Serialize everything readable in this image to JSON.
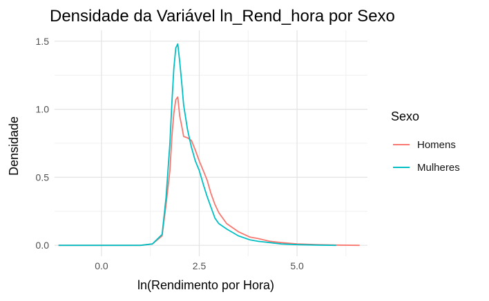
{
  "chart_data": {
    "type": "line",
    "title": "Densidade da Variável ln_Rend_hora por Sexo",
    "xlabel": "ln(Rendimento por Hora)",
    "ylabel": "Densidade",
    "xlim": [
      -1.2,
      6.8
    ],
    "ylim": [
      -0.08,
      1.58
    ],
    "x_ticks": [
      0,
      2.5,
      5
    ],
    "x_tick_labels": [
      "0.0",
      "2.5",
      "5.0"
    ],
    "y_ticks": [
      0,
      0.5,
      1,
      1.5
    ],
    "y_tick_labels": [
      "0.0",
      "0.5",
      "1.0",
      "1.5"
    ],
    "grid": true,
    "legend": {
      "title": "Sexo",
      "position": "right"
    },
    "series": [
      {
        "name": "Homens",
        "color": "#F8766D",
        "x": [
          -1.1,
          0,
          1.0,
          1.3,
          1.55,
          1.65,
          1.75,
          1.8,
          1.85,
          1.9,
          1.95,
          2.0,
          2.05,
          2.1,
          2.2,
          2.3,
          2.4,
          2.5,
          2.6,
          2.7,
          2.8,
          2.9,
          3.0,
          3.2,
          3.5,
          3.8,
          4.0,
          4.3,
          4.6,
          5.0,
          5.5,
          6.0,
          6.6
        ],
        "values": [
          0,
          0,
          0,
          0.01,
          0.07,
          0.3,
          0.55,
          0.8,
          0.97,
          1.07,
          1.09,
          0.95,
          0.88,
          0.8,
          0.79,
          0.77,
          0.7,
          0.62,
          0.55,
          0.48,
          0.38,
          0.3,
          0.24,
          0.16,
          0.1,
          0.06,
          0.05,
          0.03,
          0.02,
          0.01,
          0.005,
          0.002,
          0
        ]
      },
      {
        "name": "Mulheres",
        "color": "#00BFC4",
        "x": [
          -1.1,
          0,
          1.0,
          1.3,
          1.55,
          1.65,
          1.75,
          1.8,
          1.85,
          1.9,
          1.95,
          2.0,
          2.05,
          2.1,
          2.2,
          2.3,
          2.4,
          2.5,
          2.6,
          2.7,
          2.8,
          2.9,
          3.0,
          3.2,
          3.5,
          3.8,
          4.0,
          4.3,
          4.6,
          5.0,
          5.5,
          6.0
        ],
        "values": [
          0,
          0,
          0,
          0.01,
          0.08,
          0.35,
          0.75,
          1.05,
          1.3,
          1.45,
          1.48,
          1.35,
          1.2,
          1.03,
          0.85,
          0.72,
          0.62,
          0.55,
          0.45,
          0.36,
          0.28,
          0.2,
          0.16,
          0.12,
          0.07,
          0.04,
          0.03,
          0.02,
          0.01,
          0.005,
          0.002,
          0
        ]
      }
    ]
  }
}
